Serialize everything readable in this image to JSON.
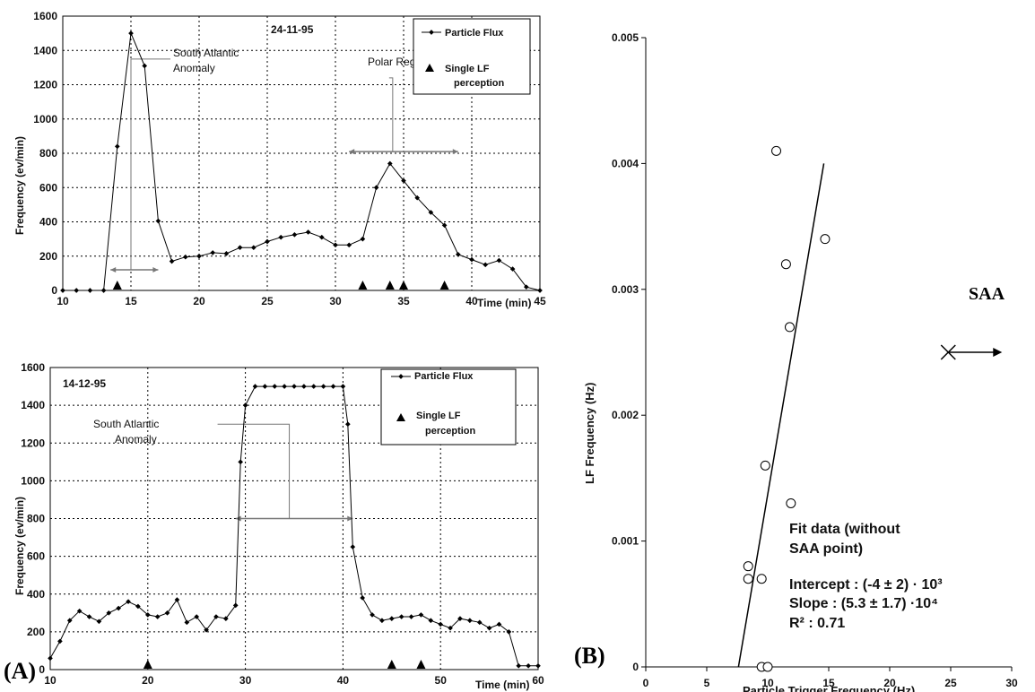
{
  "chart_data": [
    {
      "id": "top",
      "type": "line",
      "panel_label": "",
      "date_label": "24-11-95",
      "xlabel": "Time (min)",
      "ylabel": "Frequency (ev/min)",
      "xlim": [
        10,
        45
      ],
      "ylim": [
        0,
        1600
      ],
      "xticks": [
        10,
        15,
        20,
        25,
        30,
        35,
        40,
        45
      ],
      "yticks": [
        0,
        200,
        400,
        600,
        800,
        1000,
        1200,
        1400,
        1600
      ],
      "grid": true,
      "legend": {
        "placement": "top-right",
        "entries": [
          "Particle Flux",
          "Single LF",
          "perception"
        ]
      },
      "series": [
        {
          "name": "Particle Flux",
          "x": [
            10,
            11,
            12,
            13,
            14,
            15,
            16,
            17,
            18,
            19,
            20,
            21,
            22,
            23,
            24,
            25,
            26,
            27,
            28,
            29,
            30,
            31,
            32,
            33,
            34,
            35,
            36,
            37,
            38,
            39,
            40,
            41,
            42,
            43,
            44,
            45
          ],
          "y": [
            0,
            0,
            0,
            0,
            840,
            1500,
            1310,
            405,
            170,
            195,
            200,
            220,
            215,
            250,
            250,
            285,
            310,
            325,
            340,
            310,
            265,
            265,
            300,
            600,
            740,
            640,
            540,
            455,
            380,
            210,
            180,
            150,
            175,
            125,
            20,
            0
          ]
        }
      ],
      "markers": {
        "name": "Single LF perception",
        "x": [
          14,
          32,
          34,
          35,
          38
        ],
        "y": [
          0,
          0,
          0,
          0,
          0
        ]
      },
      "annotations": [
        {
          "text_lines": [
            "South Atlantic",
            "Anomaly"
          ],
          "bracket": [
            13.5,
            17
          ]
        },
        {
          "text_lines": [
            "Polar Region"
          ],
          "bracket": [
            31,
            39
          ]
        }
      ]
    },
    {
      "id": "bottom",
      "type": "line",
      "panel_label": "(A)",
      "date_label": "14-12-95",
      "xlabel": "Time (min)",
      "ylabel": "Frequency (ev/min)",
      "xlim": [
        10,
        60
      ],
      "ylim": [
        0,
        1600
      ],
      "xticks": [
        10,
        20,
        30,
        40,
        50,
        60
      ],
      "yticks": [
        0,
        200,
        400,
        600,
        800,
        1000,
        1200,
        1400,
        1600
      ],
      "grid": true,
      "legend": {
        "placement": "top-right",
        "entries": [
          "Particle Flux",
          "Single LF",
          "perception"
        ]
      },
      "series": [
        {
          "name": "Particle Flux",
          "x": [
            10,
            11,
            12,
            13,
            14,
            15,
            16,
            17,
            18,
            19,
            20,
            21,
            22,
            23,
            24,
            25,
            26,
            27,
            28,
            29,
            29.5,
            30,
            31,
            32,
            33,
            34,
            35,
            36,
            37,
            38,
            39,
            40,
            40.5,
            41,
            42,
            43,
            44,
            45,
            46,
            47,
            48,
            49,
            50,
            51,
            52,
            53,
            54,
            55,
            56,
            57,
            58,
            59,
            60
          ],
          "y": [
            60,
            150,
            260,
            310,
            280,
            255,
            300,
            325,
            360,
            335,
            290,
            280,
            300,
            370,
            250,
            280,
            210,
            280,
            270,
            340,
            1100,
            1400,
            1500,
            1500,
            1500,
            1500,
            1500,
            1500,
            1500,
            1500,
            1500,
            1500,
            1300,
            650,
            380,
            290,
            260,
            270,
            280,
            280,
            290,
            260,
            240,
            220,
            270,
            260,
            250,
            220,
            240,
            200,
            20,
            20,
            20
          ]
        }
      ],
      "markers": {
        "name": "Single LF perception",
        "x": [
          20,
          45,
          48
        ],
        "y": [
          0,
          0,
          0
        ]
      },
      "annotations": [
        {
          "text_lines": [
            "South Atlantic",
            "Anomaly"
          ],
          "bracket": [
            29,
            41
          ]
        }
      ]
    },
    {
      "id": "right",
      "type": "scatter",
      "panel_label": "(B)",
      "xlabel": "Particle Trigger Frequency (Hz)",
      "ylabel": "LF Frequency (Hz)",
      "xlim": [
        0,
        30
      ],
      "ylim": [
        0,
        0.005
      ],
      "xticks": [
        0,
        5,
        10,
        15,
        20,
        25,
        30
      ],
      "yticks": [
        0,
        0.001,
        0.002,
        0.003,
        0.004,
        0.005
      ],
      "ytick_labels": [
        "0",
        "0.001",
        "0.002",
        "0.003",
        "0.004",
        "0.005"
      ],
      "grid": false,
      "points": {
        "x": [
          10.7,
          14.7,
          11.5,
          11.8,
          9.8,
          11.9,
          8.4,
          8.4,
          9.5,
          9.5,
          10.0
        ],
        "y": [
          0.0041,
          0.0034,
          0.0032,
          0.0027,
          0.0016,
          0.0013,
          0.0008,
          0.0007,
          0.0007,
          0.0,
          0.0
        ]
      },
      "fit_line": {
        "x": [
          7.6,
          14.6
        ],
        "y": [
          0.0,
          0.004
        ]
      },
      "saa_point": {
        "label": "SAA",
        "x": 24.8,
        "y": 0.0025
      },
      "fit_text": [
        "Fit data (without",
        "SAA point)"
      ],
      "stats": {
        "intercept": "Intercept : (-4 ± 2) · 10³",
        "slope": "Slope : (5.3 ± 1.7) ·10⁴",
        "r2": "R² : 0.71"
      }
    }
  ]
}
